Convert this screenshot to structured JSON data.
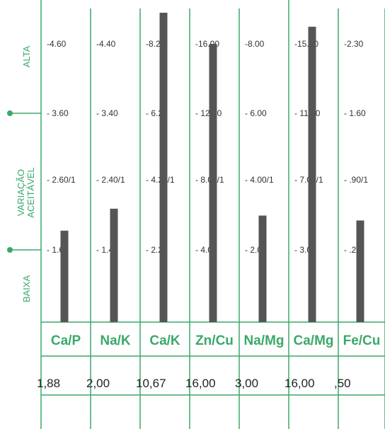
{
  "colors": {
    "grid": "#3aa96a",
    "bar": "#555555",
    "text": "#333333",
    "label": "#3aa96a"
  },
  "chart_data": {
    "type": "bar",
    "categories": [
      "Ca/P",
      "Na/K",
      "Ca/K",
      "Zn/Cu",
      "Na/Mg",
      "Ca/Mg",
      "Fe/Cu"
    ],
    "values": [
      1.88,
      2.0,
      10.67,
      16.0,
      3.0,
      16.0,
      0.5
    ],
    "value_labels": [
      "1,88",
      "2,00",
      "10,67",
      "16,00",
      "3,00",
      "16,00",
      ",50"
    ],
    "bands": [
      "ALTA",
      "VARIAÇÃO ACEITÁVEL",
      "BAIXA"
    ],
    "tick_labels": [
      [
        "-4.60",
        "- 3.60",
        "- 2.60/1",
        "- 1.60"
      ],
      [
        "-4.40",
        "- 3.40",
        "- 2.40/1",
        "- 1.40"
      ],
      [
        "-8.20",
        "- 6.20",
        "- 4.20/1",
        "- 2.20"
      ],
      [
        "-16.00",
        "- 12.00",
        "- 8.00/1",
        "- 4.00"
      ],
      [
        "-8.00",
        "- 6.00",
        "- 4.00/1",
        "- 2.00"
      ],
      [
        "-15.00",
        "- 11.00",
        "- 7.00/1",
        "- 3.00"
      ],
      [
        "-2.30",
        "- 1.60",
        "- .90/1",
        "- .20"
      ]
    ],
    "tick_values": [
      [
        4.6,
        3.6,
        2.6,
        1.6
      ],
      [
        4.4,
        3.4,
        2.4,
        1.4
      ],
      [
        8.2,
        6.2,
        4.2,
        2.2
      ],
      [
        16.0,
        12.0,
        8.0,
        4.0
      ],
      [
        8.0,
        6.0,
        4.0,
        2.0
      ],
      [
        15.0,
        11.0,
        7.0,
        3.0
      ],
      [
        2.3,
        1.6,
        0.9,
        0.2
      ]
    ]
  }
}
